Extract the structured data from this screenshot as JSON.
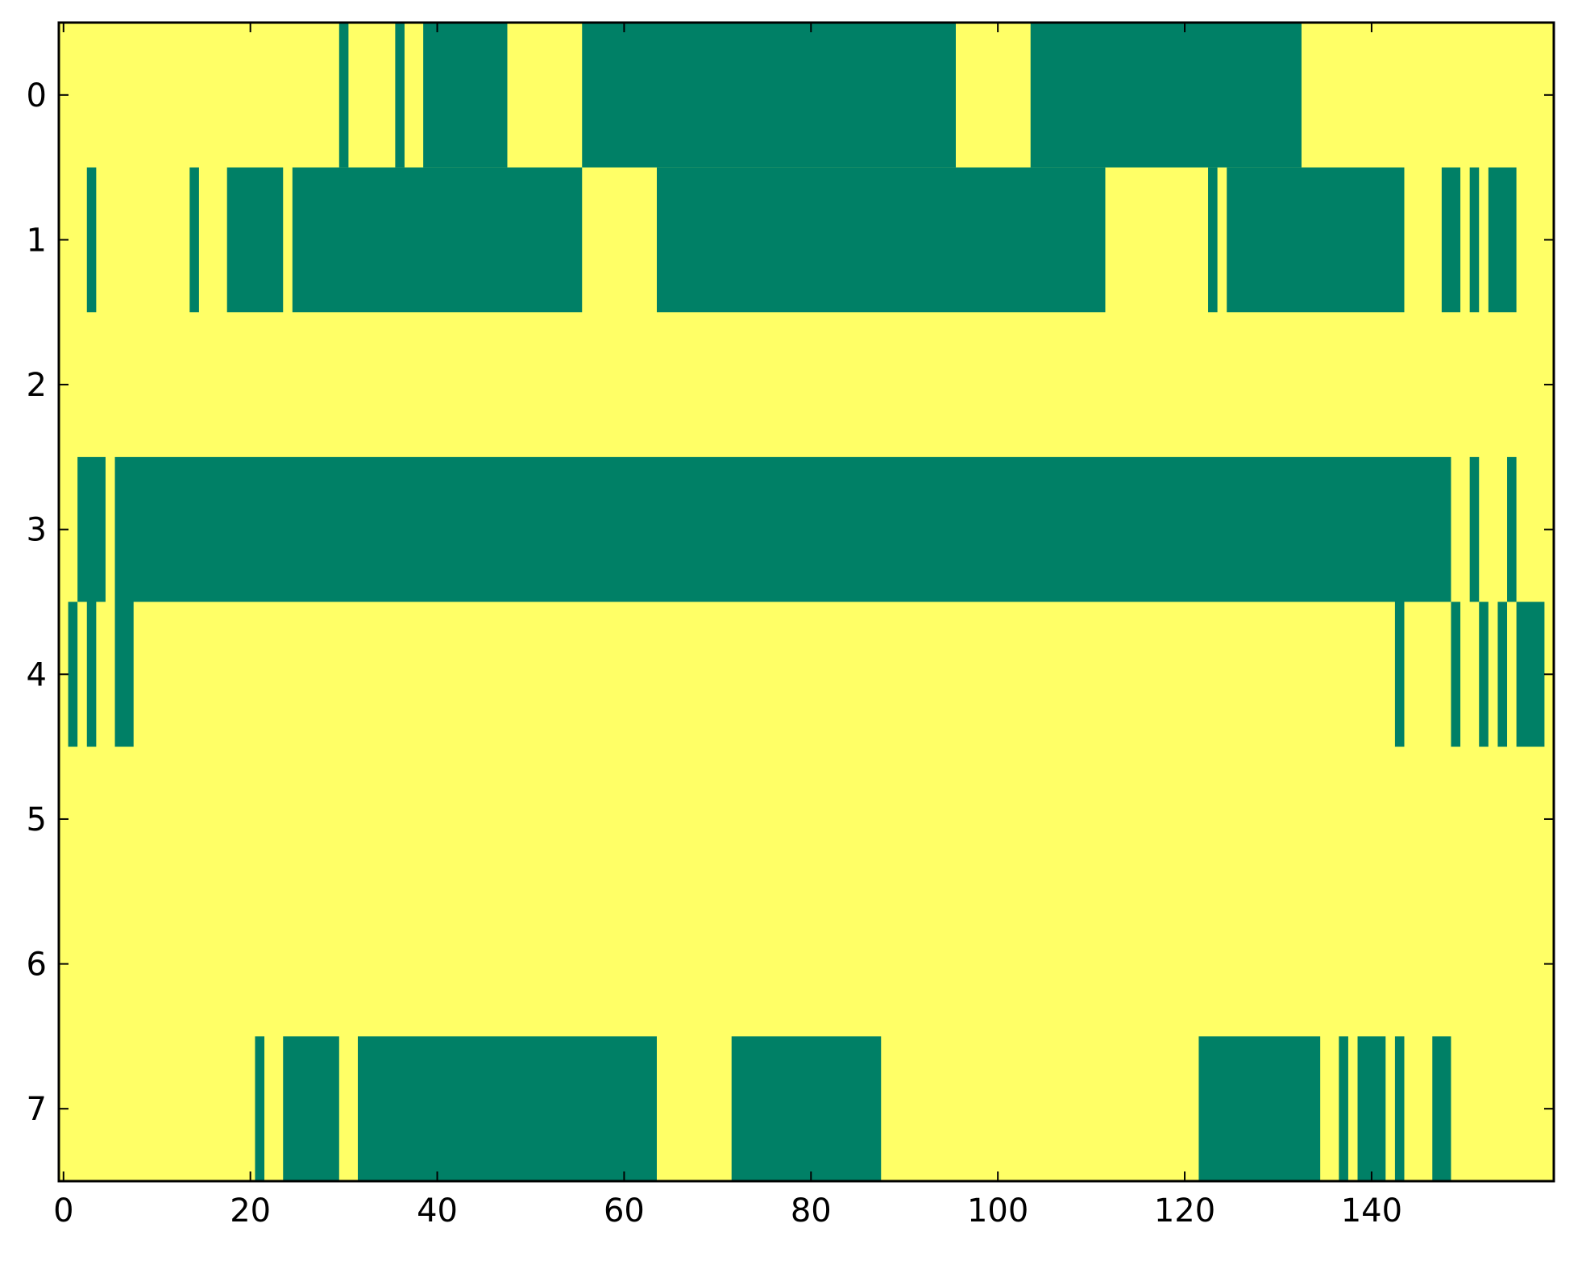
{
  "chart_data": {
    "type": "heatmap",
    "title": "",
    "xlabel": "",
    "ylabel": "",
    "xlim": [
      -0.5,
      159.5
    ],
    "ylim": [
      7.5,
      -0.5
    ],
    "x_ticks": [
      0,
      20,
      40,
      60,
      80,
      100,
      120,
      140
    ],
    "y_ticks": [
      0,
      1,
      2,
      3,
      4,
      5,
      6,
      7
    ],
    "x_tick_labels": [
      "0",
      "20",
      "40",
      "60",
      "80",
      "100",
      "120",
      "140"
    ],
    "y_tick_labels": [
      "0",
      "1",
      "2",
      "3",
      "4",
      "5",
      "6",
      "7"
    ],
    "n_columns": 160,
    "values": [
      0,
      1
    ],
    "colors": {
      "0": "#ffff66",
      "1": "#008066"
    },
    "grid": false,
    "rows": [
      {
        "row": 0,
        "high_ranges": [
          [
            30,
            30
          ],
          [
            36,
            36
          ],
          [
            39,
            47
          ],
          [
            56,
            95
          ],
          [
            104,
            132
          ]
        ]
      },
      {
        "row": 1,
        "high_ranges": [
          [
            3,
            3
          ],
          [
            14,
            14
          ],
          [
            18,
            23
          ],
          [
            25,
            55
          ],
          [
            64,
            111
          ],
          [
            123,
            123
          ],
          [
            125,
            143
          ],
          [
            148,
            149
          ],
          [
            151,
            151
          ],
          [
            153,
            155
          ]
        ]
      },
      {
        "row": 2,
        "high_ranges": []
      },
      {
        "row": 3,
        "high_ranges": [
          [
            2,
            4
          ],
          [
            6,
            148
          ],
          [
            151,
            151
          ],
          [
            155,
            155
          ]
        ]
      },
      {
        "row": 4,
        "high_ranges": [
          [
            1,
            1
          ],
          [
            3,
            3
          ],
          [
            6,
            7
          ],
          [
            143,
            143
          ],
          [
            149,
            149
          ],
          [
            152,
            152
          ],
          [
            154,
            154
          ],
          [
            156,
            158
          ]
        ]
      },
      {
        "row": 5,
        "high_ranges": []
      },
      {
        "row": 6,
        "high_ranges": []
      },
      {
        "row": 7,
        "high_ranges": [
          [
            21,
            21
          ],
          [
            24,
            29
          ],
          [
            32,
            63
          ],
          [
            72,
            87
          ],
          [
            122,
            134
          ],
          [
            137,
            137
          ],
          [
            139,
            141
          ],
          [
            143,
            143
          ],
          [
            147,
            148
          ]
        ]
      }
    ]
  }
}
